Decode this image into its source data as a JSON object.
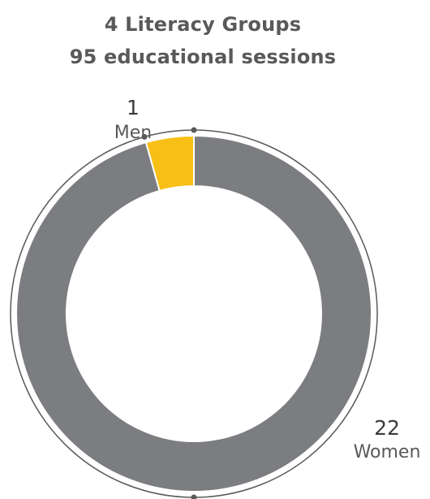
{
  "chart_data": {
    "type": "pie",
    "title": [
      "4 Literacy Groups",
      "95 educational sessions"
    ],
    "categories": [
      "Men",
      "Women"
    ],
    "values": [
      1,
      22
    ],
    "colors": {
      "Men": "#f8bf16",
      "Women": "#7c7d80",
      "outline": "#58595b",
      "separator": "#ffffff"
    },
    "style": "donut",
    "legend": "none"
  }
}
